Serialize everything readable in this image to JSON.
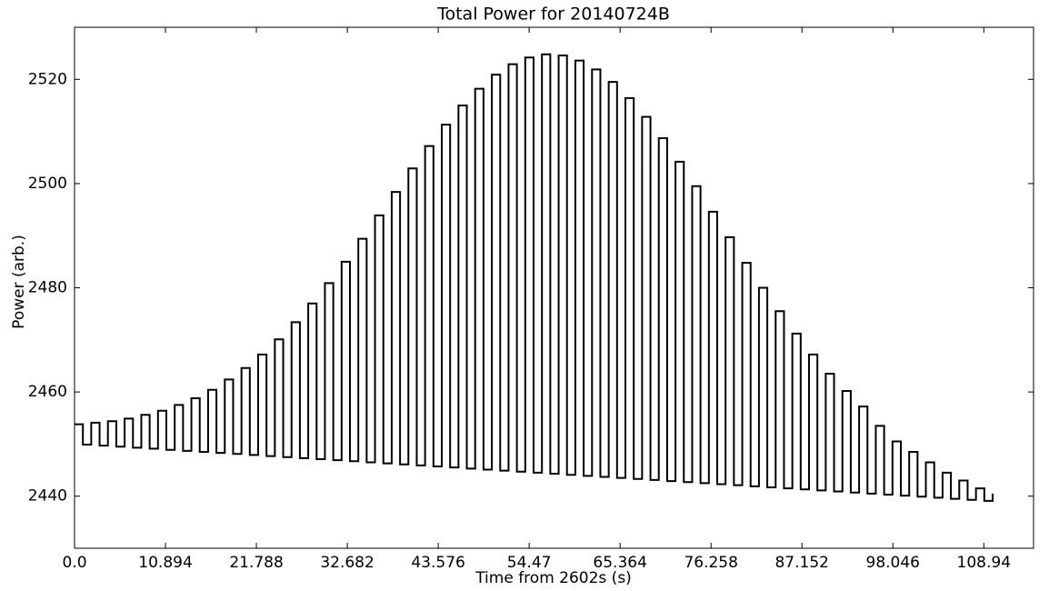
{
  "chart_data": {
    "type": "line",
    "drawstyle": "steps-post",
    "title": "Total Power for 20140724B",
    "x_label": "Time from 2602s (s)",
    "y_label": "Power (arb.)",
    "xlim": [
      0,
      114.9
    ],
    "ylim": [
      2430,
      2530
    ],
    "xticks": [
      {
        "value": 0,
        "label": "0.0"
      },
      10.894,
      21.788,
      32.682,
      43.576,
      54.47,
      65.364,
      76.258,
      87.152,
      98.046,
      108.94
    ],
    "yticks": [
      2440,
      2460,
      2480,
      2500,
      2520
    ],
    "grid": false,
    "series": [
      {
        "color": "#000000",
        "x": [
          0,
          1,
          2,
          3,
          4,
          5,
          6,
          7,
          8,
          9,
          10,
          11,
          12,
          13,
          14,
          15,
          16,
          17,
          18,
          19,
          20,
          21,
          22,
          23,
          24,
          25,
          26,
          27,
          28,
          29,
          30,
          31,
          32,
          33,
          34,
          35,
          36,
          37,
          38,
          39,
          40,
          41,
          42,
          43,
          44,
          45,
          46,
          47,
          48,
          49,
          50,
          51,
          52,
          53,
          54,
          55,
          56,
          57,
          58,
          59,
          60,
          61,
          62,
          63,
          64,
          65,
          66,
          67,
          68,
          69,
          70,
          71,
          72,
          73,
          74,
          75,
          76,
          77,
          78,
          79,
          80,
          81,
          82,
          83,
          84,
          85,
          86,
          87,
          88,
          89,
          90,
          91,
          92,
          93,
          94,
          95,
          96,
          97,
          98,
          99,
          100,
          101,
          102,
          103,
          104,
          105,
          106,
          107,
          108,
          109,
          110
        ],
        "values": [
          2453.8,
          2449.9,
          2454.1,
          2449.7,
          2454.4,
          2449.5,
          2454.9,
          2449.3,
          2455.6,
          2449.1,
          2456.4,
          2448.9,
          2457.5,
          2448.7,
          2458.8,
          2448.5,
          2460.4,
          2448.3,
          2462.4,
          2448.1,
          2464.6,
          2447.9,
          2467.2,
          2447.7,
          2470.1,
          2447.5,
          2473.4,
          2447.3,
          2477.0,
          2447.1,
          2480.9,
          2446.9,
          2485.0,
          2446.7,
          2489.4,
          2446.5,
          2493.9,
          2446.3,
          2498.4,
          2446.1,
          2502.9,
          2445.9,
          2507.2,
          2445.7,
          2511.3,
          2445.5,
          2515.0,
          2445.3,
          2518.2,
          2445.1,
          2520.9,
          2444.9,
          2522.9,
          2444.7,
          2524.2,
          2444.5,
          2524.8,
          2444.3,
          2524.6,
          2444.1,
          2523.6,
          2443.9,
          2521.9,
          2443.7,
          2519.5,
          2443.5,
          2516.4,
          2443.3,
          2512.8,
          2443.1,
          2508.7,
          2442.9,
          2504.2,
          2442.7,
          2499.5,
          2442.5,
          2494.6,
          2442.3,
          2489.7,
          2442.1,
          2484.8,
          2441.9,
          2480.0,
          2441.7,
          2475.5,
          2441.5,
          2471.2,
          2441.3,
          2467.2,
          2441.1,
          2463.5,
          2440.9,
          2460.2,
          2440.7,
          2457.2,
          2440.5,
          2453.5,
          2440.3,
          2450.5,
          2440.1,
          2448.5,
          2439.9,
          2446.5,
          2439.7,
          2444.5,
          2439.5,
          2443.0,
          2439.3,
          2441.5,
          2439.1,
          2440.5
        ]
      }
    ]
  }
}
